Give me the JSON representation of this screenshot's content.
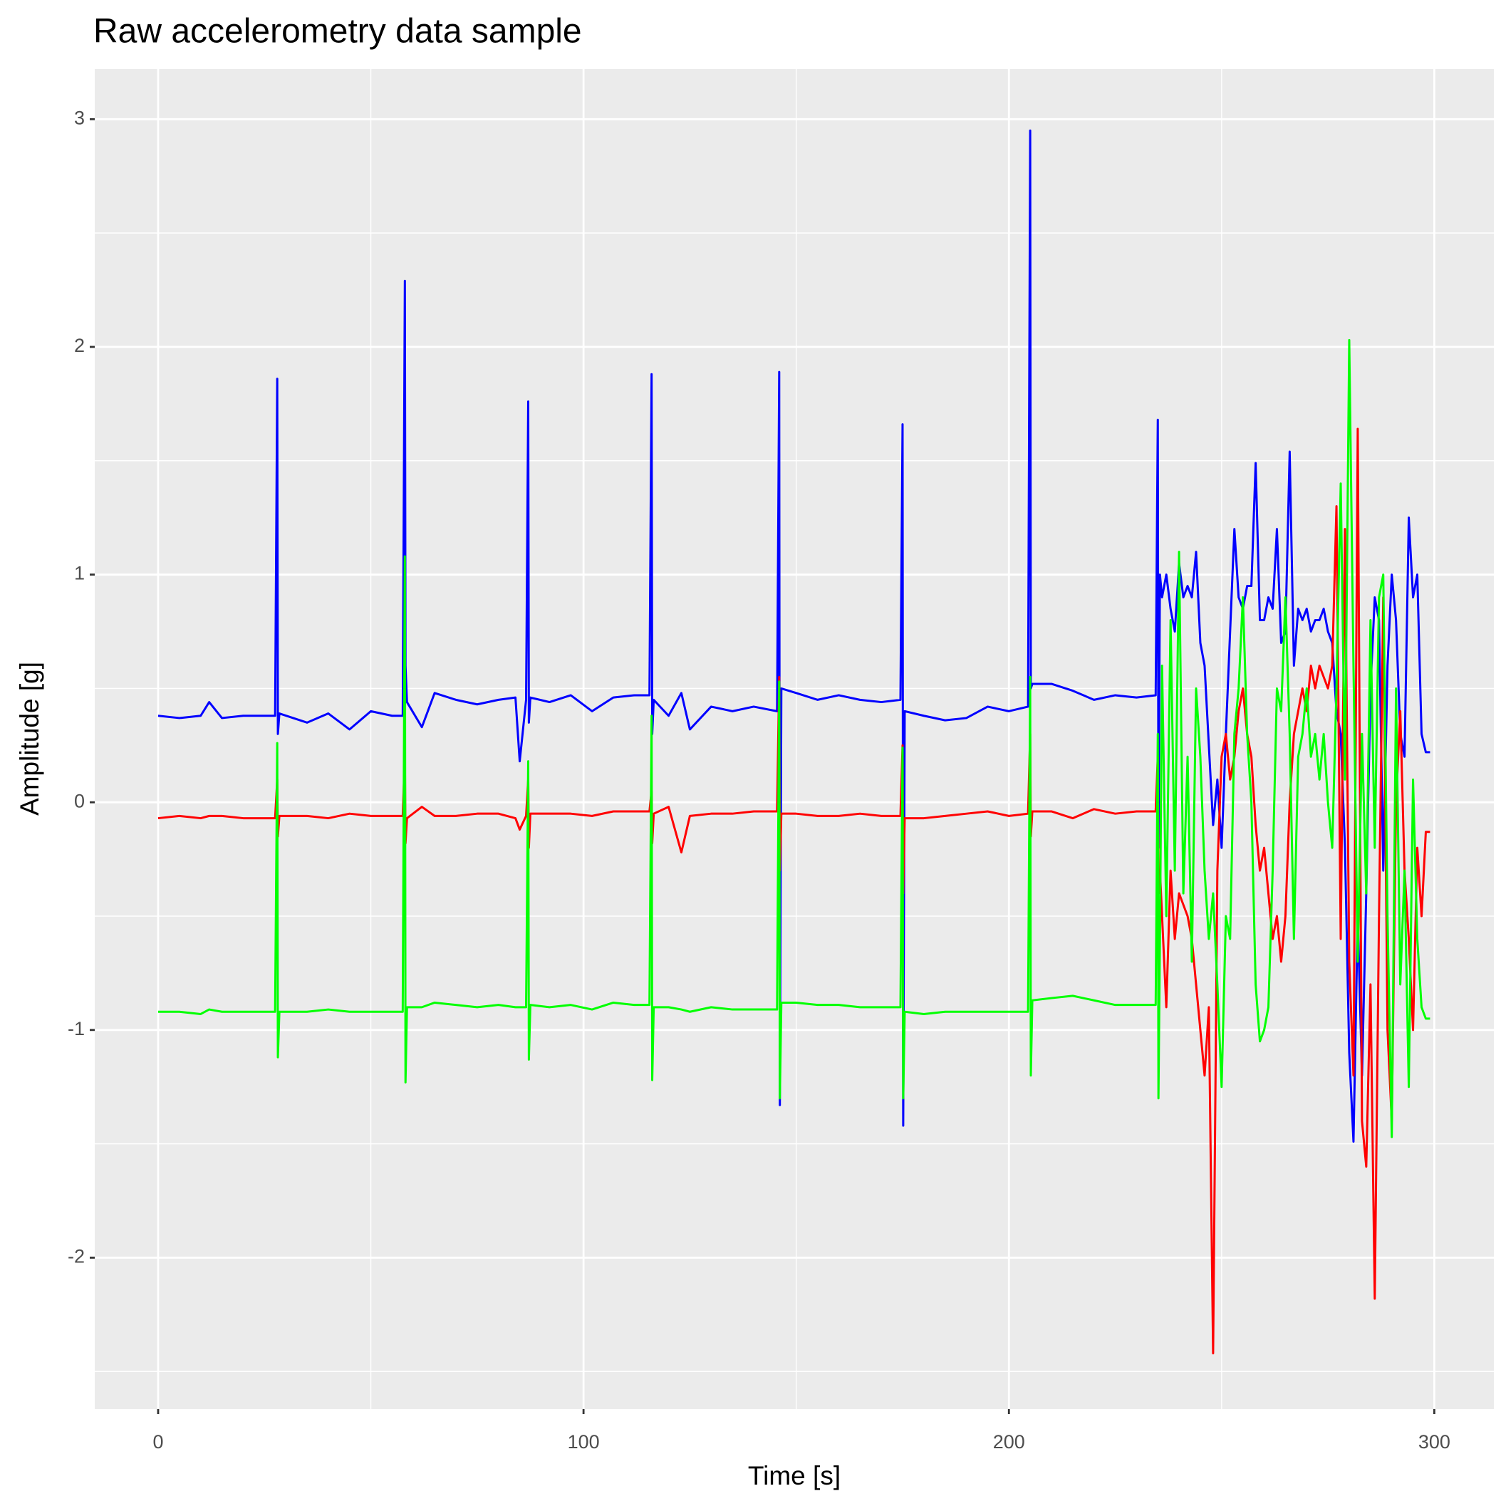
{
  "chart_data": {
    "type": "line",
    "title": "Raw accelerometry data sample",
    "x_label": "Time [s]",
    "y_label": "Amplitude [g]",
    "xlim": [
      -14.9,
      314
    ],
    "ylim": [
      -2.665,
      3.22
    ],
    "xticks": [
      0,
      100,
      200,
      300
    ],
    "yticks": [
      -2,
      -1,
      0,
      1,
      2,
      3
    ],
    "xminor": [
      50,
      150,
      250
    ],
    "yminor": [
      -2.5,
      -1.5,
      -0.5,
      0.5,
      1.5,
      2.5
    ],
    "grid": true,
    "x": [
      0,
      5,
      10,
      12,
      15,
      20,
      27.5,
      28,
      28.15,
      28.5,
      35,
      40,
      45,
      50,
      55,
      57.5,
      58,
      58.15,
      58.5,
      62,
      65,
      70,
      75,
      80,
      84,
      85,
      86.5,
      87,
      87.15,
      87.5,
      92,
      97,
      102,
      107,
      112,
      115.5,
      116,
      116.15,
      116.5,
      120,
      123,
      125,
      130,
      135,
      140,
      145.5,
      146,
      146.15,
      146.5,
      150,
      155,
      160,
      165,
      170,
      174.5,
      175,
      175.15,
      175.5,
      180,
      185,
      190,
      195,
      200,
      204.5,
      205,
      205.15,
      205.5,
      210,
      215,
      220,
      225,
      230,
      234.5,
      235,
      235.15,
      235.5,
      236,
      237,
      238,
      239,
      240,
      241,
      242,
      243,
      244,
      245,
      246,
      247,
      248,
      249,
      250,
      251,
      252,
      253,
      254,
      255,
      256,
      257,
      258,
      259,
      260,
      261,
      262,
      263,
      264,
      265,
      266,
      267,
      268,
      269,
      270,
      271,
      272,
      273,
      274,
      275,
      276,
      277,
      278,
      279,
      280,
      281,
      282,
      283,
      284,
      285,
      286,
      287,
      288,
      289,
      290,
      291,
      292,
      293,
      294,
      295,
      296,
      297,
      298,
      299
    ],
    "series": [
      {
        "color": "#0000ff",
        "values": [
          0.38,
          0.37,
          0.38,
          0.44,
          0.37,
          0.38,
          0.38,
          1.86,
          0.3,
          0.39,
          0.35,
          0.39,
          0.32,
          0.4,
          0.38,
          0.38,
          2.29,
          0.6,
          0.44,
          0.33,
          0.48,
          0.45,
          0.43,
          0.45,
          0.46,
          0.18,
          0.45,
          1.76,
          0.35,
          0.46,
          0.44,
          0.47,
          0.4,
          0.46,
          0.47,
          0.47,
          1.88,
          0.3,
          0.45,
          0.38,
          0.48,
          0.32,
          0.42,
          0.4,
          0.42,
          0.4,
          1.89,
          -1.33,
          0.5,
          0.48,
          0.45,
          0.47,
          0.45,
          0.44,
          0.45,
          1.66,
          -1.42,
          0.4,
          0.38,
          0.36,
          0.37,
          0.42,
          0.4,
          0.42,
          2.95,
          0.5,
          0.52,
          0.52,
          0.49,
          0.45,
          0.47,
          0.46,
          0.47,
          1.68,
          -0.2,
          1.0,
          0.9,
          1.0,
          0.85,
          0.75,
          1.05,
          0.9,
          0.95,
          0.9,
          1.1,
          0.7,
          0.6,
          0.25,
          -0.1,
          0.1,
          -0.2,
          0.3,
          0.75,
          1.2,
          0.9,
          0.85,
          0.95,
          0.95,
          1.49,
          0.8,
          0.8,
          0.9,
          0.85,
          1.2,
          0.7,
          0.75,
          1.54,
          0.6,
          0.85,
          0.8,
          0.85,
          0.75,
          0.8,
          0.8,
          0.85,
          0.75,
          0.7,
          0.4,
          0.3,
          -0.2,
          -1.1,
          -1.49,
          -0.5,
          -1.2,
          -0.4,
          0.5,
          0.9,
          0.8,
          -0.3,
          0.6,
          1.0,
          0.8,
          0.3,
          0.2,
          1.25,
          0.9,
          1.0,
          0.3,
          0.22,
          0.22
        ]
      },
      {
        "color": "#ff0000",
        "values": [
          -0.07,
          -0.06,
          -0.07,
          -0.06,
          -0.06,
          -0.07,
          -0.07,
          0.1,
          -0.15,
          -0.06,
          -0.06,
          -0.07,
          -0.05,
          -0.06,
          -0.06,
          -0.06,
          0.2,
          -0.18,
          -0.07,
          -0.02,
          -0.06,
          -0.06,
          -0.05,
          -0.05,
          -0.07,
          -0.12,
          -0.06,
          0.1,
          -0.2,
          -0.05,
          -0.05,
          -0.05,
          -0.06,
          -0.04,
          -0.04,
          -0.04,
          0.05,
          -0.18,
          -0.05,
          -0.02,
          -0.22,
          -0.06,
          -0.05,
          -0.05,
          -0.04,
          -0.04,
          0.55,
          -0.3,
          -0.05,
          -0.05,
          -0.06,
          -0.06,
          -0.05,
          -0.06,
          -0.06,
          0.25,
          -0.4,
          -0.07,
          -0.07,
          -0.06,
          -0.05,
          -0.04,
          -0.06,
          -0.05,
          0.3,
          -0.15,
          -0.04,
          -0.04,
          -0.07,
          -0.03,
          -0.05,
          -0.04,
          -0.04,
          0.2,
          -0.4,
          -0.3,
          -0.5,
          -0.9,
          -0.3,
          -0.6,
          -0.4,
          -0.45,
          -0.5,
          -0.6,
          -0.8,
          -1.0,
          -1.2,
          -0.9,
          -2.42,
          -0.3,
          0.2,
          0.3,
          0.1,
          0.2,
          0.4,
          0.5,
          0.3,
          0.2,
          -0.1,
          -0.3,
          -0.2,
          -0.4,
          -0.6,
          -0.5,
          -0.7,
          -0.5,
          0.0,
          0.3,
          0.4,
          0.5,
          0.4,
          0.6,
          0.5,
          0.6,
          0.55,
          0.5,
          0.6,
          1.3,
          -0.6,
          1.2,
          -0.7,
          -1.2,
          1.64,
          -1.4,
          -1.6,
          -0.8,
          -2.18,
          -0.5,
          0.9,
          -1.0,
          -1.4,
          0.0,
          0.4,
          -0.3,
          -0.6,
          -1.0,
          -0.2,
          -0.5,
          -0.13,
          -0.13
        ]
      },
      {
        "color": "#00ff00",
        "values": [
          -0.92,
          -0.92,
          -0.93,
          -0.91,
          -0.92,
          -0.92,
          -0.92,
          0.26,
          -1.12,
          -0.92,
          -0.92,
          -0.91,
          -0.92,
          -0.92,
          -0.92,
          -0.92,
          1.08,
          -1.23,
          -0.9,
          -0.9,
          -0.88,
          -0.89,
          -0.9,
          -0.89,
          -0.9,
          -0.9,
          -0.9,
          0.18,
          -1.13,
          -0.89,
          -0.9,
          -0.89,
          -0.91,
          -0.88,
          -0.89,
          -0.89,
          0.38,
          -1.22,
          -0.9,
          -0.9,
          -0.91,
          -0.92,
          -0.9,
          -0.91,
          -0.91,
          -0.91,
          0.53,
          -1.3,
          -0.88,
          -0.88,
          -0.89,
          -0.89,
          -0.9,
          -0.9,
          -0.9,
          0.24,
          -1.3,
          -0.92,
          -0.93,
          -0.92,
          -0.92,
          -0.92,
          -0.92,
          -0.92,
          0.55,
          -1.2,
          -0.87,
          -0.86,
          -0.85,
          -0.87,
          -0.89,
          -0.89,
          -0.89,
          0.3,
          -1.3,
          -0.6,
          0.6,
          -0.5,
          0.8,
          -0.3,
          1.1,
          -0.4,
          0.2,
          -0.7,
          0.5,
          0.2,
          -0.3,
          -0.6,
          -0.4,
          -0.8,
          -1.25,
          -0.5,
          -0.6,
          0.3,
          0.5,
          0.9,
          0.3,
          0.0,
          -0.8,
          -1.05,
          -1.0,
          -0.9,
          -0.3,
          0.5,
          0.4,
          0.9,
          0.3,
          -0.6,
          0.2,
          0.3,
          0.5,
          0.2,
          0.3,
          0.1,
          0.3,
          0.0,
          -0.2,
          0.5,
          1.4,
          0.1,
          2.03,
          0.6,
          -0.7,
          0.3,
          -0.4,
          0.8,
          -0.2,
          0.9,
          1.0,
          -0.5,
          -1.47,
          0.5,
          -0.8,
          -0.3,
          -1.25,
          0.1,
          -0.6,
          -0.9,
          -0.95,
          -0.95
        ]
      }
    ]
  }
}
